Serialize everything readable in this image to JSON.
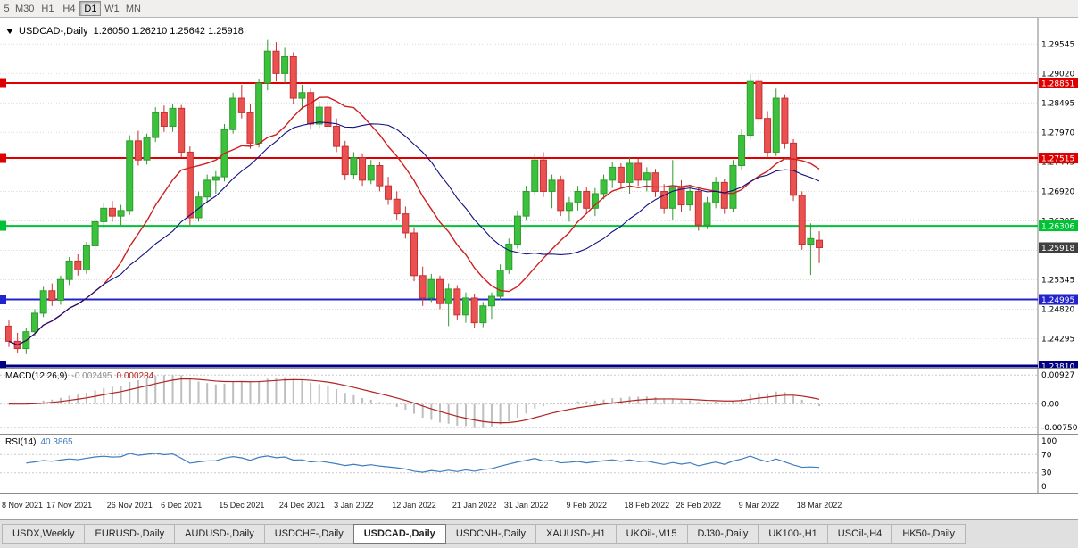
{
  "toolbar": {
    "timeframes": [
      {
        "label": "5",
        "active": false
      },
      {
        "label": "M30",
        "active": false
      },
      {
        "label": "H1",
        "active": false
      },
      {
        "label": "H4",
        "active": false
      },
      {
        "label": "D1",
        "active": true
      },
      {
        "label": "W1",
        "active": false
      },
      {
        "label": "MN",
        "active": false
      }
    ]
  },
  "chart": {
    "title": "USDCAD-,Daily",
    "ohlc_text": "1.26050 1.26210 1.25642 1.25918",
    "ohlc": {
      "open": "1.26050",
      "high": "1.26210",
      "low": "1.25642",
      "close": "1.25918"
    },
    "y_axis": [
      "1.29545",
      "1.29020",
      "1.28495",
      "1.27970",
      "1.27445",
      "1.26920",
      "1.26395",
      "1.25870",
      "1.25345",
      "1.24820",
      "1.24295",
      "1.23770"
    ],
    "colors": {
      "bull": "#3CC13C",
      "bull_border": "#2E9B2E",
      "bear": "#EA5252",
      "bear_border": "#C63030",
      "grid": "#DCDCDC",
      "axis_sep": "#808080",
      "macd_hist": "#BEBEBE",
      "macd_signal": "#B22222",
      "rsi_line": "#3E7CBE",
      "current_badge": "#3F3F3F"
    }
  },
  "chart_data": {
    "type": "candlestick",
    "symbol": "USDCAD-",
    "timeframe": "Daily",
    "last_ohlc": {
      "open": 1.2605,
      "high": 1.2621,
      "low": 1.25642,
      "close": 1.25918
    },
    "current_price": {
      "label": "1.25918",
      "value": 1.25918
    },
    "levels": [
      {
        "label": "1.28851",
        "value": 1.28851,
        "color": "#DE0000",
        "thickness": 2
      },
      {
        "label": "1.27515",
        "value": 1.27515,
        "color": "#DE0000",
        "thickness": 2
      },
      {
        "label": "1.26306",
        "value": 1.26306,
        "color": "#00C234",
        "thickness": 2
      },
      {
        "label": "1.24995",
        "value": 1.24995,
        "color": "#2323CC",
        "thickness": 2
      },
      {
        "label": "1.23810",
        "value": 1.2381,
        "color": "#000080",
        "thickness": 3
      }
    ],
    "moving_averages": [
      {
        "type": "sma",
        "period": 12,
        "color": "#CE2020",
        "width": 1.4
      },
      {
        "type": "sma",
        "period": 20,
        "color": "#101080",
        "width": 1.1
      }
    ],
    "indicators": [
      {
        "name": "MACD",
        "params": [
          12,
          26,
          9
        ],
        "current": [
          -0.002495,
          0.000284
        ]
      },
      {
        "name": "RSI",
        "params": [
          14
        ],
        "current": 40.3865
      }
    ],
    "date_ticks": [
      {
        "i": 0,
        "label": "8 Nov 2021"
      },
      {
        "i": 7,
        "label": "17 Nov 2021"
      },
      {
        "i": 14,
        "label": "26 Nov 2021"
      },
      {
        "i": 20,
        "label": "6 Dec 2021"
      },
      {
        "i": 27,
        "label": "15 Dec 2021"
      },
      {
        "i": 34,
        "label": "24 Dec 2021"
      },
      {
        "i": 40,
        "label": "3 Jan 2022"
      },
      {
        "i": 47,
        "label": "12 Jan 2022"
      },
      {
        "i": 54,
        "label": "21 Jan 2022"
      },
      {
        "i": 60,
        "label": "31 Jan 2022"
      },
      {
        "i": 67,
        "label": "9 Feb 2022"
      },
      {
        "i": 74,
        "label": "18 Feb 2022"
      },
      {
        "i": 80,
        "label": "28 Feb 2022"
      },
      {
        "i": 87,
        "label": "9 Mar 2022"
      },
      {
        "i": 94,
        "label": "18 Mar 2022"
      }
    ],
    "candles": [
      [
        1.2452,
        1.2462,
        1.2415,
        1.2425
      ],
      [
        1.2425,
        1.244,
        1.2405,
        1.2412
      ],
      [
        1.2412,
        1.2448,
        1.2402,
        1.2442
      ],
      [
        1.2442,
        1.2482,
        1.2435,
        1.2475
      ],
      [
        1.2475,
        1.2522,
        1.2468,
        1.2515
      ],
      [
        1.2515,
        1.2528,
        1.2488,
        1.2498
      ],
      [
        1.2498,
        1.2542,
        1.249,
        1.2535
      ],
      [
        1.2535,
        1.2575,
        1.2525,
        1.2568
      ],
      [
        1.2568,
        1.258,
        1.2542,
        1.2552
      ],
      [
        1.2552,
        1.2602,
        1.2545,
        1.2595
      ],
      [
        1.2595,
        1.2645,
        1.2588,
        1.2638
      ],
      [
        1.2638,
        1.2672,
        1.2628,
        1.2662
      ],
      [
        1.2662,
        1.2675,
        1.2638,
        1.2648
      ],
      [
        1.2648,
        1.2668,
        1.2632,
        1.2658
      ],
      [
        1.2658,
        1.2792,
        1.265,
        1.2782
      ],
      [
        1.2782,
        1.28,
        1.2738,
        1.2748
      ],
      [
        1.2748,
        1.2795,
        1.274,
        1.2788
      ],
      [
        1.2788,
        1.2842,
        1.278,
        1.2832
      ],
      [
        1.2832,
        1.2845,
        1.2798,
        1.2808
      ],
      [
        1.2808,
        1.2848,
        1.2798,
        1.284
      ],
      [
        1.284,
        1.2846,
        1.2752,
        1.2762
      ],
      [
        1.2762,
        1.2772,
        1.2632,
        1.2645
      ],
      [
        1.2645,
        1.2692,
        1.2638,
        1.2682
      ],
      [
        1.2682,
        1.2722,
        1.2672,
        1.2712
      ],
      [
        1.2712,
        1.2728,
        1.2688,
        1.2718
      ],
      [
        1.2718,
        1.2812,
        1.271,
        1.2802
      ],
      [
        1.2802,
        1.2868,
        1.2795,
        1.2858
      ],
      [
        1.2858,
        1.2882,
        1.2822,
        1.2832
      ],
      [
        1.2832,
        1.2848,
        1.2768,
        1.2778
      ],
      [
        1.2778,
        1.2892,
        1.277,
        1.2885
      ],
      [
        1.2885,
        1.2962,
        1.2872,
        1.2942
      ],
      [
        1.2942,
        1.2958,
        1.2888,
        1.2902
      ],
      [
        1.2902,
        1.2948,
        1.2885,
        1.2932
      ],
      [
        1.2932,
        1.294,
        1.2848,
        1.2858
      ],
      [
        1.2858,
        1.2882,
        1.2838,
        1.2868
      ],
      [
        1.2868,
        1.2875,
        1.2802,
        1.2812
      ],
      [
        1.2812,
        1.2852,
        1.2805,
        1.2842
      ],
      [
        1.2842,
        1.2855,
        1.2798,
        1.2808
      ],
      [
        1.2808,
        1.2822,
        1.2762,
        1.2772
      ],
      [
        1.2772,
        1.2782,
        1.2712,
        1.2722
      ],
      [
        1.2722,
        1.2762,
        1.2715,
        1.2752
      ],
      [
        1.2752,
        1.276,
        1.2702,
        1.2712
      ],
      [
        1.2712,
        1.2748,
        1.2705,
        1.2738
      ],
      [
        1.2738,
        1.2745,
        1.2692,
        1.2702
      ],
      [
        1.2702,
        1.2718,
        1.2668,
        1.2678
      ],
      [
        1.2678,
        1.2692,
        1.2642,
        1.2652
      ],
      [
        1.2652,
        1.2665,
        1.2608,
        1.2618
      ],
      [
        1.2618,
        1.2628,
        1.2532,
        1.2542
      ],
      [
        1.2542,
        1.2558,
        1.2488,
        1.2502
      ],
      [
        1.2502,
        1.2545,
        1.2495,
        1.2535
      ],
      [
        1.2535,
        1.2542,
        1.2482,
        1.2492
      ],
      [
        1.2492,
        1.2528,
        1.2452,
        1.2518
      ],
      [
        1.2518,
        1.2525,
        1.2462,
        1.2472
      ],
      [
        1.2472,
        1.2512,
        1.2458,
        1.2502
      ],
      [
        1.2502,
        1.251,
        1.2448,
        1.2458
      ],
      [
        1.2458,
        1.2495,
        1.245,
        1.2488
      ],
      [
        1.2488,
        1.2512,
        1.2465,
        1.2505
      ],
      [
        1.2505,
        1.2562,
        1.2498,
        1.2552
      ],
      [
        1.2552,
        1.2608,
        1.2545,
        1.2598
      ],
      [
        1.2598,
        1.2658,
        1.259,
        1.2648
      ],
      [
        1.2648,
        1.2702,
        1.264,
        1.2692
      ],
      [
        1.2692,
        1.2758,
        1.2685,
        1.2748
      ],
      [
        1.2748,
        1.2762,
        1.2682,
        1.2692
      ],
      [
        1.2692,
        1.2722,
        1.2662,
        1.2712
      ],
      [
        1.2712,
        1.272,
        1.2648,
        1.2658
      ],
      [
        1.2658,
        1.2682,
        1.2638,
        1.2672
      ],
      [
        1.2672,
        1.2702,
        1.2658,
        1.2692
      ],
      [
        1.2692,
        1.27,
        1.2652,
        1.2662
      ],
      [
        1.2662,
        1.2698,
        1.2648,
        1.2688
      ],
      [
        1.2688,
        1.2722,
        1.2678,
        1.2712
      ],
      [
        1.2712,
        1.2745,
        1.2698,
        1.2735
      ],
      [
        1.2735,
        1.2742,
        1.2698,
        1.2708
      ],
      [
        1.2708,
        1.2752,
        1.2688,
        1.2742
      ],
      [
        1.2742,
        1.275,
        1.2702,
        1.2712
      ],
      [
        1.2712,
        1.2735,
        1.2692,
        1.2725
      ],
      [
        1.2725,
        1.2732,
        1.2682,
        1.2692
      ],
      [
        1.2692,
        1.2705,
        1.2652,
        1.2662
      ],
      [
        1.2662,
        1.2748,
        1.2642,
        1.2698
      ],
      [
        1.2698,
        1.2712,
        1.2655,
        1.2668
      ],
      [
        1.2668,
        1.2702,
        1.2658,
        1.2692
      ],
      [
        1.2692,
        1.27,
        1.2622,
        1.2632
      ],
      [
        1.2632,
        1.2682,
        1.2625,
        1.2672
      ],
      [
        1.2672,
        1.2718,
        1.2662,
        1.2708
      ],
      [
        1.2708,
        1.2715,
        1.2652,
        1.2662
      ],
      [
        1.2662,
        1.2748,
        1.2655,
        1.2738
      ],
      [
        1.2738,
        1.2802,
        1.273,
        1.2792
      ],
      [
        1.2792,
        1.2902,
        1.2785,
        1.2888
      ],
      [
        1.2888,
        1.2898,
        1.2812,
        1.2822
      ],
      [
        1.2822,
        1.2835,
        1.2752,
        1.2762
      ],
      [
        1.2762,
        1.2875,
        1.2755,
        1.2858
      ],
      [
        1.2858,
        1.2865,
        1.2768,
        1.2778
      ],
      [
        1.2778,
        1.2785,
        1.2675,
        1.2685
      ],
      [
        1.2685,
        1.2692,
        1.2588,
        1.2598
      ],
      [
        1.2598,
        1.2635,
        1.2543,
        1.2608
      ],
      [
        1.2605,
        1.2621,
        1.25642,
        1.25918
      ]
    ]
  },
  "macd": {
    "name": "MACD(12,26,9)",
    "value1": "-0.002495",
    "value2": "0.000284",
    "axis": [
      "0.00927",
      "0.00",
      "-0.00750"
    ],
    "axis_values": [
      0.00927,
      0,
      -0.0075
    ]
  },
  "rsi": {
    "name": "RSI(14)",
    "value": "40.3865",
    "axis": [
      "100",
      "70",
      "30",
      "0"
    ],
    "axis_values": [
      100,
      70,
      30,
      0
    ],
    "bands": [
      70,
      30
    ]
  },
  "tabs": {
    "active_index": 4,
    "items": [
      {
        "label": "USDX,Weekly"
      },
      {
        "label": "EURUSD-,Daily"
      },
      {
        "label": "AUDUSD-,Daily"
      },
      {
        "label": "USDCHF-,Daily"
      },
      {
        "label": "USDCAD-,Daily"
      },
      {
        "label": "USDCNH-,Daily"
      },
      {
        "label": "XAUUSD-,H1"
      },
      {
        "label": "UKOil-,M15"
      },
      {
        "label": "DJ30-,Daily"
      },
      {
        "label": "UK100-,H1"
      },
      {
        "label": "USOil-,H4"
      },
      {
        "label": "HK50-,Daily"
      }
    ]
  }
}
